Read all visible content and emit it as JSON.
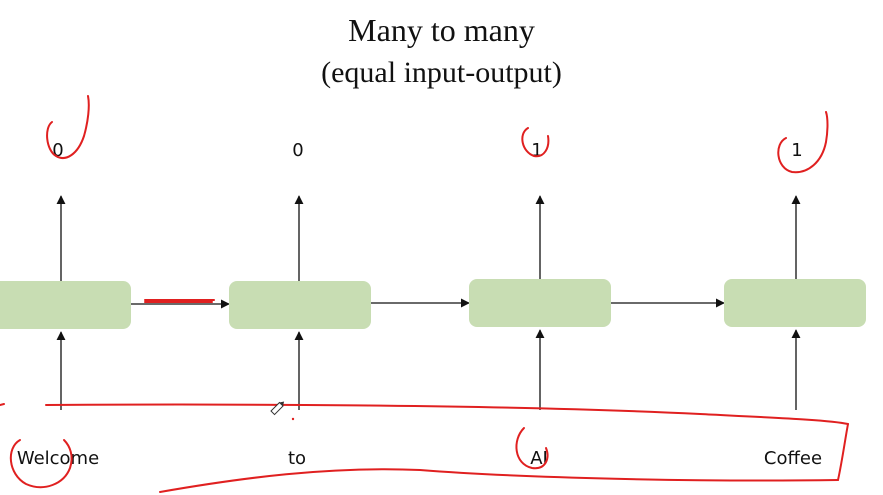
{
  "title": "Many to many",
  "subtitle": "(equal input-output)",
  "steps": [
    {
      "input": "Welcome",
      "output": "0"
    },
    {
      "input": "to",
      "output": "0"
    },
    {
      "input": "AI",
      "output": "1"
    },
    {
      "input": "Coffee",
      "output": "1"
    }
  ],
  "colors": {
    "cell_fill": "#c8ddb3",
    "arrow": "#111111",
    "annotation": "#e02020"
  }
}
